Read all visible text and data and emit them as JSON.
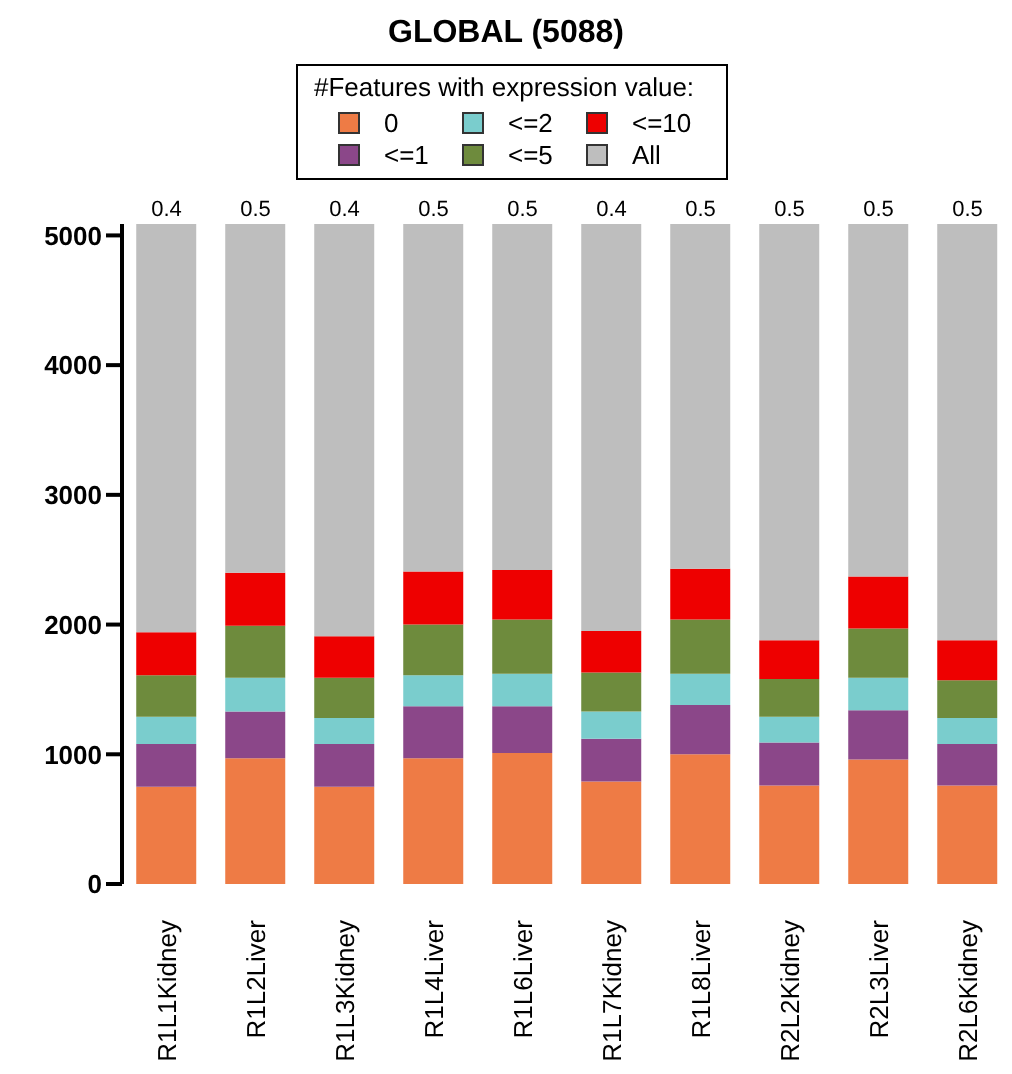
{
  "chart_data": {
    "type": "bar",
    "title": "GLOBAL (5088)",
    "stacked": true,
    "categories": [
      "R1L1Kidney",
      "R1L2Liver",
      "R1L3Kidney",
      "R1L4Liver",
      "R1L6Liver",
      "R1L7Kidney",
      "R1L8Liver",
      "R2L2Kidney",
      "R2L3Liver",
      "R2L6Kidney"
    ],
    "series": [
      {
        "name": "0",
        "color": "#ee7b45",
        "values": [
          750,
          970,
          750,
          970,
          1010,
          790,
          1000,
          760,
          960,
          760
        ]
      },
      {
        "name": "<=1",
        "color": "#8b4789",
        "values": [
          330,
          360,
          330,
          400,
          360,
          330,
          380,
          330,
          380,
          320
        ]
      },
      {
        "name": "<=2",
        "color": "#7acdcd",
        "values": [
          210,
          260,
          200,
          240,
          250,
          210,
          240,
          200,
          250,
          200
        ]
      },
      {
        "name": "<=5",
        "color": "#6e8b3d",
        "values": [
          320,
          400,
          310,
          390,
          420,
          300,
          420,
          290,
          380,
          290
        ]
      },
      {
        "name": "<=10",
        "color": "#ee0000",
        "values": [
          330,
          410,
          320,
          410,
          380,
          320,
          390,
          300,
          400,
          310
        ]
      },
      {
        "name": "All",
        "color": "#bebebe",
        "values": [
          3148,
          2688,
          3178,
          2678,
          2668,
          3138,
          2658,
          3208,
          2718,
          3208
        ]
      }
    ],
    "legend": "top",
    "legend_title": "#Features with expression value:",
    "ylim": [
      0,
      5088
    ],
    "yticks": [
      0,
      1000,
      2000,
      3000,
      4000,
      5000
    ],
    "grid": false,
    "annotations": [
      {
        "text": "0.4",
        "x": "R1L1Kidney",
        "y": 5088
      },
      {
        "text": "0.5",
        "x": "R1L2Liver",
        "y": 5088
      },
      {
        "text": "0.4",
        "x": "R1L3Kidney",
        "y": 5088
      },
      {
        "text": "0.5",
        "x": "R1L4Liver",
        "y": 5088
      },
      {
        "text": "0.5",
        "x": "R1L6Liver",
        "y": 5088
      },
      {
        "text": "0.4",
        "x": "R1L7Kidney",
        "y": 5088
      },
      {
        "text": "0.5",
        "x": "R1L8Liver",
        "y": 5088
      },
      {
        "text": "0.5",
        "x": "R2L2Kidney",
        "y": 5088
      },
      {
        "text": "0.5",
        "x": "R2L3Liver",
        "y": 5088
      },
      {
        "text": "0.5",
        "x": "R2L6Kidney",
        "y": 5088
      }
    ]
  }
}
